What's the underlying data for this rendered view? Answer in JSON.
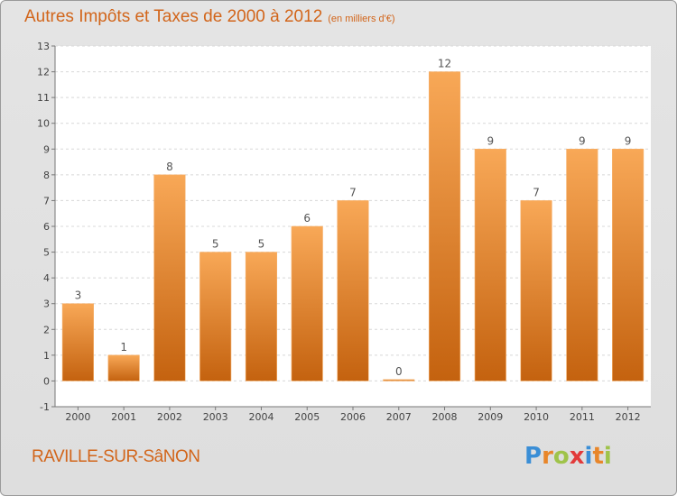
{
  "header": {
    "title": "Autres Impôts et Taxes de 2000 à 2012",
    "unit": "(en milliers d'€)"
  },
  "footer": {
    "commune": "RAVILLE-SUR-SâNON",
    "logo_letters": [
      "P",
      "r",
      "o",
      "x",
      "i",
      "t",
      "i"
    ],
    "logo_colors": [
      "#3a8ed6",
      "#e8862a",
      "#9fc34a",
      "#e23b3b",
      "#3a8ed6",
      "#e8862a",
      "#9fc34a"
    ]
  },
  "colors": {
    "bar_top": "#f8a857",
    "bar_bottom": "#c4620f",
    "title": "#d2651a"
  },
  "chart_data": {
    "type": "bar",
    "title": "Autres Impôts et Taxes de 2000 à 2012",
    "xlabel": "",
    "ylabel": "",
    "categories": [
      "2000",
      "2001",
      "2002",
      "2003",
      "2004",
      "2005",
      "2006",
      "2007",
      "2008",
      "2009",
      "2010",
      "2011",
      "2012"
    ],
    "values": [
      3,
      1,
      8,
      5,
      5,
      6,
      7,
      0,
      12,
      9,
      7,
      9,
      9
    ],
    "ylim": [
      -1,
      13
    ],
    "yticks": [
      -1,
      0,
      1,
      2,
      3,
      4,
      5,
      6,
      7,
      8,
      9,
      10,
      11,
      12,
      13
    ],
    "grid": true,
    "legend": "none"
  }
}
